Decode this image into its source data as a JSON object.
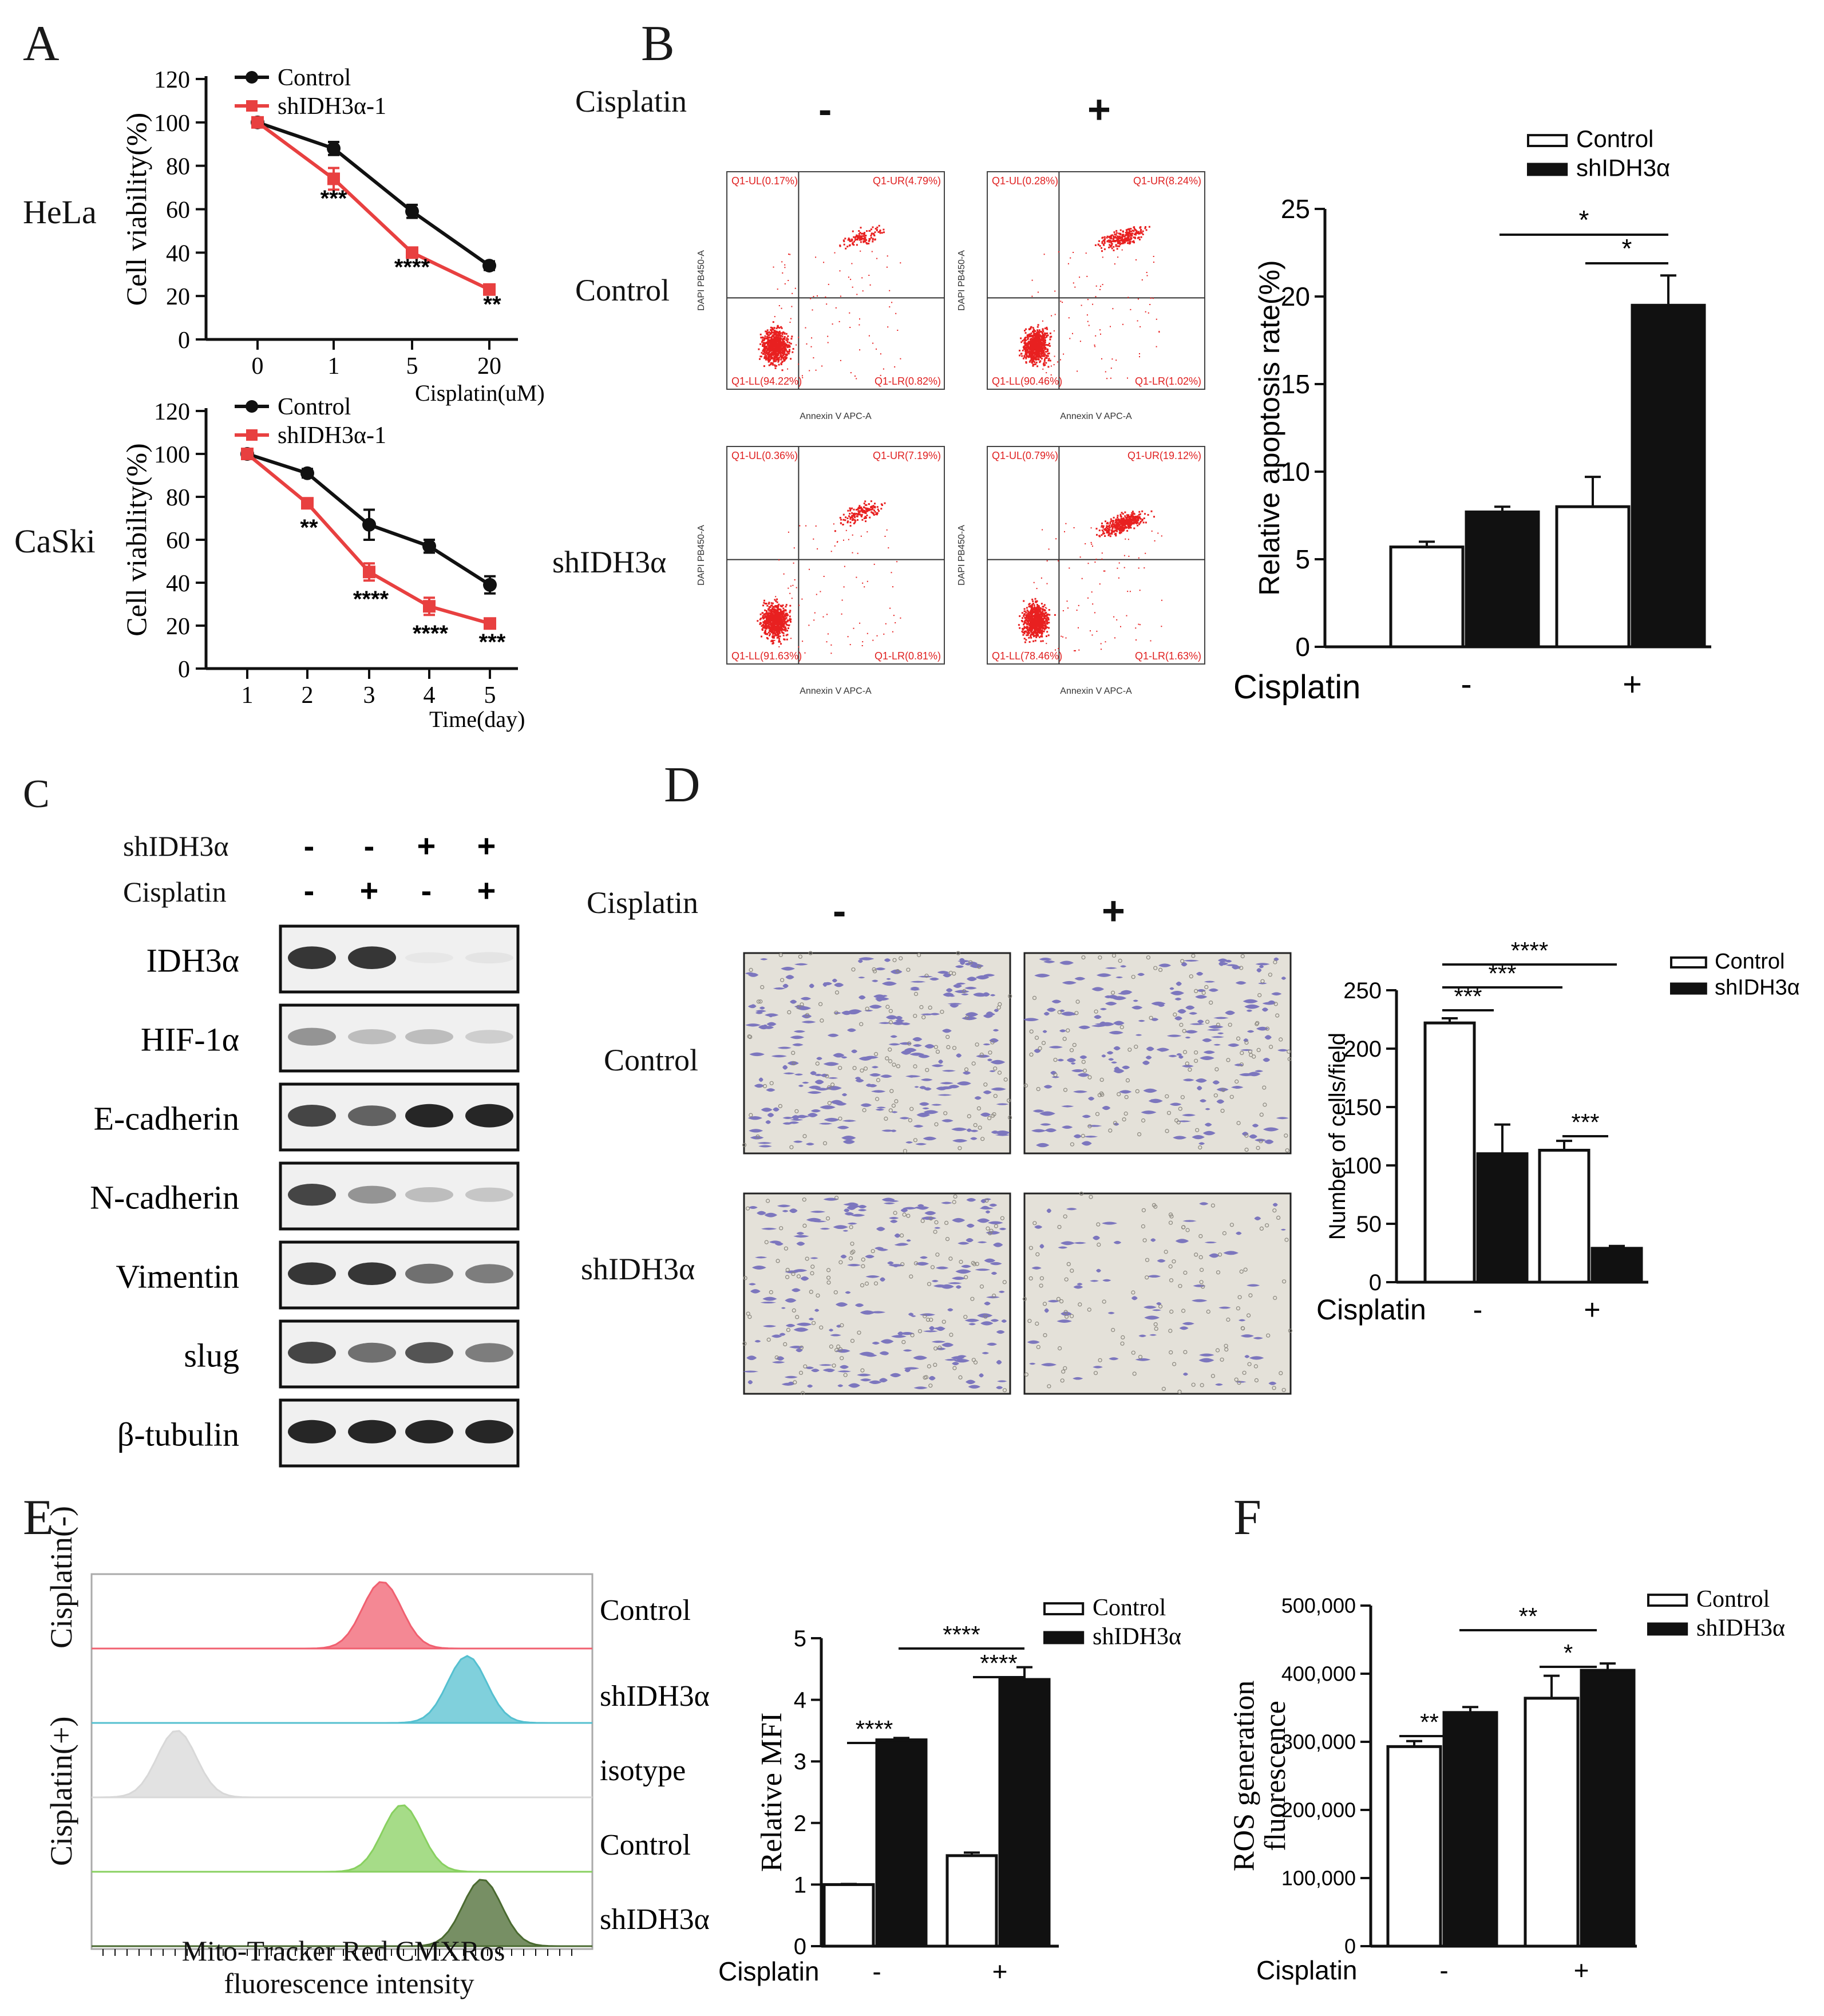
{
  "panels": {
    "A": {
      "letter": "A",
      "hela": {
        "row_label": "HeLa",
        "chart_data": {
          "type": "line",
          "ylabel": "Cell viability(%)",
          "xlabel": "Cisplatin(uM)",
          "categories": [
            "0",
            "1",
            "5",
            "20"
          ],
          "ylim": [
            0,
            120
          ],
          "yticks": [
            "0",
            "20",
            "40",
            "60",
            "80",
            "100",
            "120"
          ],
          "series": [
            {
              "name": "Control",
              "color": "#111111",
              "values": [
                100,
                88,
                59,
                34
              ],
              "errors": [
                1,
                3,
                3,
                2
              ]
            },
            {
              "name": "shIDH3α-1",
              "color": "#e84040",
              "values": [
                100,
                74,
                40,
                23
              ],
              "errors": [
                1,
                5,
                1,
                1
              ]
            }
          ],
          "annotations": [
            "***",
            "****",
            "**"
          ]
        }
      },
      "caski": {
        "row_label": "CaSki",
        "chart_data": {
          "type": "line",
          "ylabel": "Cell viability(%)",
          "xlabel": "Time(day)",
          "categories": [
            "1",
            "2",
            "3",
            "4",
            "5"
          ],
          "ylim": [
            0,
            120
          ],
          "yticks": [
            "0",
            "20",
            "40",
            "60",
            "80",
            "100",
            "120"
          ],
          "series": [
            {
              "name": "Control",
              "color": "#111111",
              "values": [
                100,
                91,
                67,
                57,
                39
              ],
              "errors": [
                1,
                2,
                7,
                3,
                4
              ]
            },
            {
              "name": "shIDH3α-1",
              "color": "#e84040",
              "values": [
                100,
                77,
                45,
                29,
                21
              ],
              "errors": [
                1,
                2,
                4,
                4,
                1
              ]
            }
          ],
          "annotations": [
            "**",
            "****",
            "****",
            "***"
          ]
        }
      }
    },
    "B": {
      "letter": "B",
      "cisplatin_label": "Cisplatin",
      "col_minus": "-",
      "col_plus": "+",
      "row_control": "Control",
      "row_sh": "shIDH3α",
      "facs_axes": {
        "x": "Annexin V APC-A",
        "y": "DAPI PB450-A"
      },
      "facs": [
        {
          "ul": "Q1-UL(0.17%)",
          "ur": "Q1-UR(4.79%)",
          "ll": "Q1-LL(94.22%)",
          "lr": "Q1-LR(0.82%)"
        },
        {
          "ul": "Q1-UL(0.28%)",
          "ur": "Q1-UR(8.24%)",
          "ll": "Q1-LL(90.46%)",
          "lr": "Q1-LR(1.02%)"
        },
        {
          "ul": "Q1-UL(0.36%)",
          "ur": "Q1-UR(7.19%)",
          "ll": "Q1-LL(91.63%)",
          "lr": "Q1-LR(0.81%)"
        },
        {
          "ul": "Q1-UL(0.79%)",
          "ur": "Q1-UR(19.12%)",
          "ll": "Q1-LL(78.46%)",
          "lr": "Q1-LR(1.63%)"
        }
      ],
      "chart_data": {
        "type": "bar",
        "ylabel": "Relative apoptosis rate(%)",
        "xlabel": "Cisplatin",
        "categories": [
          "-",
          "+"
        ],
        "ylim": [
          0,
          25
        ],
        "yticks": [
          "0",
          "5",
          "10",
          "15",
          "20",
          "25"
        ],
        "series": [
          {
            "name": "Control",
            "values": [
              5.7,
              8.0
            ],
            "errors": [
              0.3,
              1.7
            ]
          },
          {
            "name": "shIDH3α",
            "values": [
              7.7,
              19.5
            ],
            "errors": [
              0.3,
              1.7
            ]
          }
        ],
        "significance": [
          "*",
          "*"
        ]
      }
    },
    "C": {
      "letter": "C",
      "row1_label": "shIDH3α",
      "row1_signs": [
        "-",
        "-",
        "+",
        "+"
      ],
      "row2_label": "Cisplatin",
      "row2_signs": [
        "-",
        "+",
        "-",
        "+"
      ],
      "blots": [
        {
          "label": "IDH3α",
          "intensity": [
            0.9,
            0.9,
            0.05,
            0.08
          ]
        },
        {
          "label": "HIF-1α",
          "intensity": [
            0.55,
            0.35,
            0.35,
            0.25
          ]
        },
        {
          "label": "E-cadherin",
          "intensity": [
            0.85,
            0.75,
            0.95,
            0.95
          ]
        },
        {
          "label": "N-cadherin",
          "intensity": [
            0.85,
            0.55,
            0.35,
            0.3
          ]
        },
        {
          "label": "Vimentin",
          "intensity": [
            0.9,
            0.9,
            0.7,
            0.65
          ]
        },
        {
          "label": "slug",
          "intensity": [
            0.85,
            0.7,
            0.8,
            0.65
          ]
        },
        {
          "label": "β-tubulin",
          "intensity": [
            0.95,
            0.95,
            0.95,
            0.95
          ]
        }
      ]
    },
    "D": {
      "letter": "D",
      "cisplatin_label": "Cisplatin",
      "col_minus": "-",
      "col_plus": "+",
      "row_control": "Control",
      "row_sh": "shIDH3α",
      "chart_data": {
        "type": "bar",
        "ylabel": "Number of cells/field",
        "xlabel": "Cisplatin",
        "categories": [
          "-",
          "+"
        ],
        "ylim": [
          0,
          250
        ],
        "yticks": [
          "0",
          "50",
          "100",
          "150",
          "200",
          "250"
        ],
        "series": [
          {
            "name": "Control",
            "values": [
              222,
              113
            ],
            "errors": [
              4,
              8
            ]
          },
          {
            "name": "shIDH3α",
            "values": [
              110,
              29
            ],
            "errors": [
              25,
              2
            ]
          }
        ],
        "significance": [
          "***",
          "***",
          "****",
          "***"
        ]
      }
    },
    "E": {
      "letter": "E",
      "group_minus": "Cisplatin(-)",
      "group_plus": "Cisplatin(+)",
      "hist_xlabel1": "Mito-Tracker Red CMXRos",
      "hist_xlabel2": "fluorescence intensity",
      "tracks": [
        {
          "label": "Control",
          "color": "#f06070",
          "peak": 0.58
        },
        {
          "label": "shIDH3α",
          "color": "#55c0d0",
          "peak": 0.75
        },
        {
          "label": "isotype",
          "color": "#d8d8d8",
          "peak": 0.17
        },
        {
          "label": "Control",
          "color": "#88d060",
          "peak": 0.62
        },
        {
          "label": "shIDH3α",
          "color": "#4a6a30",
          "peak": 0.78
        }
      ],
      "chart_data": {
        "type": "bar",
        "ylabel": "Relative MFI",
        "xlabel": "Cisplatin",
        "categories": [
          "-",
          "+"
        ],
        "ylim": [
          0,
          5
        ],
        "yticks": [
          "0",
          "1",
          "2",
          "3",
          "4",
          "5"
        ],
        "series": [
          {
            "name": "Control",
            "values": [
              1.0,
              1.47
            ],
            "errors": [
              0.01,
              0.05
            ]
          },
          {
            "name": "shIDH3α",
            "values": [
              3.35,
              4.33
            ],
            "errors": [
              0.03,
              0.2
            ]
          }
        ],
        "significance": [
          "****",
          "****",
          "****"
        ]
      }
    },
    "F": {
      "letter": "F",
      "chart_data": {
        "type": "bar",
        "ylabel1": "ROS generation",
        "ylabel2": "fluorescence",
        "xlabel": "Cisplatin",
        "categories": [
          "-",
          "+"
        ],
        "ylim": [
          0,
          500000
        ],
        "yticks": [
          "0",
          "100,000",
          "200,000",
          "300,000",
          "400,000",
          "500,000"
        ],
        "series": [
          {
            "name": "Control",
            "values": [
              293000,
              364000
            ],
            "errors": [
              8000,
              33000
            ]
          },
          {
            "name": "shIDH3α",
            "values": [
              343000,
              405000
            ],
            "errors": [
              8000,
              10000
            ]
          }
        ],
        "significance": [
          "**",
          "**",
          "*"
        ]
      }
    }
  }
}
